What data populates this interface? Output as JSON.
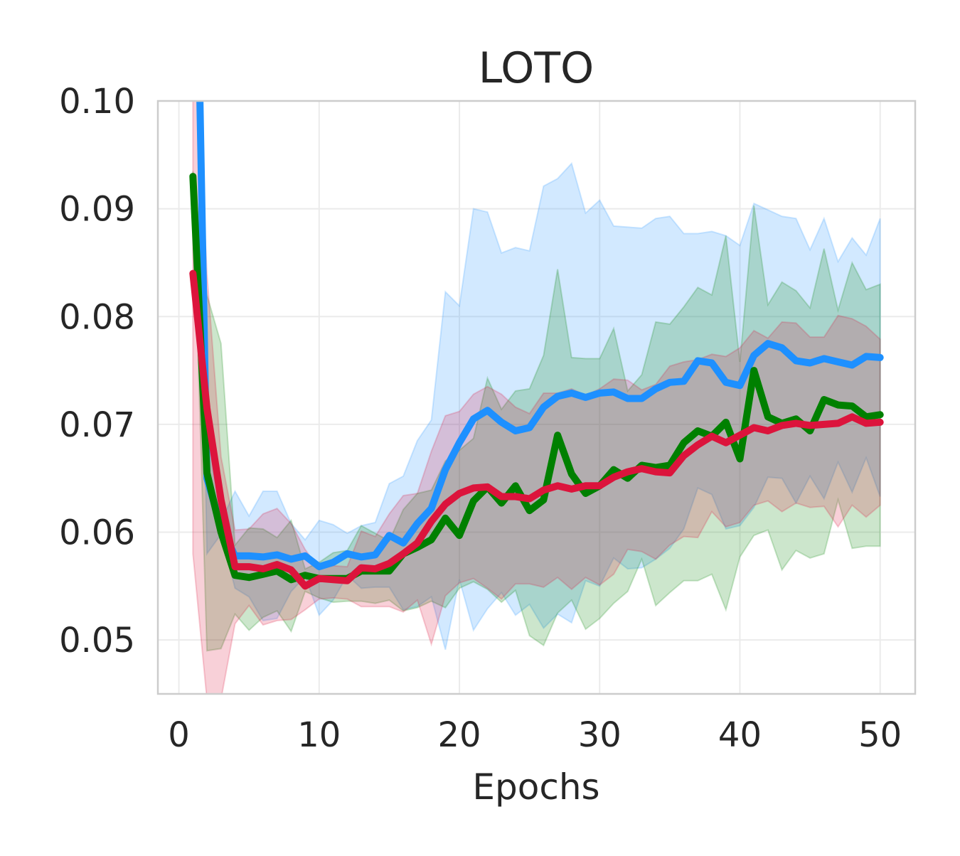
{
  "chart_data": {
    "type": "line",
    "title": "LOTO",
    "xlabel": "Epochs",
    "ylabel": "",
    "xlim": [
      -1.5,
      52.5
    ],
    "ylim": [
      0.045,
      0.1
    ],
    "xticks": [
      0,
      10,
      20,
      30,
      40,
      50
    ],
    "xtick_labels": [
      "0",
      "10",
      "20",
      "30",
      "40",
      "50"
    ],
    "yticks": [
      0.05,
      0.06,
      0.07,
      0.08,
      0.09,
      0.1
    ],
    "ytick_labels": [
      "0.05",
      "0.06",
      "0.07",
      "0.08",
      "0.09",
      "0.10"
    ],
    "grid": true,
    "x": [
      1,
      2,
      3,
      4,
      5,
      6,
      7,
      8,
      9,
      10,
      11,
      12,
      13,
      14,
      15,
      16,
      17,
      18,
      19,
      20,
      21,
      22,
      23,
      24,
      25,
      26,
      27,
      28,
      29,
      30,
      31,
      32,
      33,
      34,
      35,
      36,
      37,
      38,
      39,
      40,
      41,
      42,
      43,
      44,
      45,
      46,
      47,
      48,
      49,
      50
    ],
    "series": [
      {
        "color": "#1e90ff",
        "values": [
          0.135,
          0.065,
          0.0605,
          0.0578,
          0.0578,
          0.0577,
          0.0579,
          0.0575,
          0.0578,
          0.0568,
          0.0572,
          0.058,
          0.0577,
          0.0579,
          0.0597,
          0.059,
          0.0608,
          0.0622,
          0.0658,
          0.0683,
          0.0705,
          0.0713,
          0.0702,
          0.0694,
          0.0697,
          0.0716,
          0.0726,
          0.0729,
          0.0725,
          0.0729,
          0.073,
          0.0724,
          0.0724,
          0.0733,
          0.0739,
          0.074,
          0.0759,
          0.0757,
          0.0739,
          0.0736,
          0.0764,
          0.0775,
          0.0771,
          0.0759,
          0.0757,
          0.0761,
          0.0758,
          0.0755,
          0.0763,
          0.0762
        ],
        "upper": [
          0.14,
          0.072,
          0.061,
          0.0638,
          0.0615,
          0.0638,
          0.0638,
          0.0608,
          0.0593,
          0.0611,
          0.0607,
          0.0599,
          0.0606,
          0.0609,
          0.0645,
          0.0652,
          0.0685,
          0.0704,
          0.0823,
          0.081,
          0.09,
          0.0897,
          0.0859,
          0.0864,
          0.0861,
          0.0921,
          0.0928,
          0.0942,
          0.0896,
          0.0908,
          0.0884,
          0.0883,
          0.0882,
          0.0891,
          0.0893,
          0.0877,
          0.0877,
          0.0879,
          0.0875,
          0.0866,
          0.0905,
          0.0899,
          0.0893,
          0.0891,
          0.0862,
          0.0891,
          0.0851,
          0.0873,
          0.0857,
          0.0891
        ],
        "lower": [
          0.13,
          0.058,
          0.0598,
          0.0548,
          0.054,
          0.0518,
          0.052,
          0.0545,
          0.0559,
          0.0523,
          0.0537,
          0.056,
          0.0548,
          0.0549,
          0.0549,
          0.0528,
          0.0531,
          0.054,
          0.0491,
          0.0556,
          0.0509,
          0.0529,
          0.0544,
          0.0523,
          0.0533,
          0.0511,
          0.0524,
          0.0516,
          0.0555,
          0.055,
          0.0576,
          0.0566,
          0.0567,
          0.0575,
          0.0585,
          0.0603,
          0.0641,
          0.0635,
          0.0603,
          0.0606,
          0.0623,
          0.0651,
          0.065,
          0.0627,
          0.0652,
          0.0631,
          0.0665,
          0.0637,
          0.0669,
          0.0633
        ]
      },
      {
        "color": "#008000",
        "values": [
          0.093,
          0.0655,
          0.06,
          0.056,
          0.0558,
          0.0561,
          0.0564,
          0.0556,
          0.056,
          0.0557,
          0.0557,
          0.0557,
          0.0564,
          0.0564,
          0.0564,
          0.058,
          0.0586,
          0.0593,
          0.0613,
          0.0597,
          0.0629,
          0.0642,
          0.0627,
          0.0643,
          0.062,
          0.063,
          0.069,
          0.0654,
          0.0636,
          0.0643,
          0.0658,
          0.065,
          0.0662,
          0.066,
          0.0662,
          0.0683,
          0.0694,
          0.0689,
          0.0702,
          0.0668,
          0.075,
          0.0707,
          0.0701,
          0.0705,
          0.0694,
          0.0723,
          0.0718,
          0.0717,
          0.0707,
          0.0709
        ],
        "upper": [
          0.0935,
          0.082,
          0.0775,
          0.0588,
          0.0604,
          0.0603,
          0.0595,
          0.0611,
          0.0566,
          0.0572,
          0.0581,
          0.0583,
          0.0606,
          0.0599,
          0.0592,
          0.0621,
          0.0636,
          0.0639,
          0.0666,
          0.0676,
          0.0687,
          0.0743,
          0.0714,
          0.0731,
          0.0733,
          0.0764,
          0.0844,
          0.0762,
          0.0761,
          0.0761,
          0.0789,
          0.0731,
          0.0746,
          0.0795,
          0.0793,
          0.0809,
          0.0827,
          0.082,
          0.0875,
          0.0758,
          0.0903,
          0.0811,
          0.0832,
          0.0824,
          0.0808,
          0.0863,
          0.0806,
          0.085,
          0.0825,
          0.083
        ],
        "lower": [
          0.0925,
          0.049,
          0.0492,
          0.0524,
          0.0509,
          0.0521,
          0.0527,
          0.0508,
          0.0545,
          0.0539,
          0.0535,
          0.0536,
          0.0536,
          0.0534,
          0.0537,
          0.0527,
          0.053,
          0.0536,
          0.053,
          0.0548,
          0.0554,
          0.0547,
          0.0535,
          0.0546,
          0.0504,
          0.0495,
          0.0525,
          0.0537,
          0.051,
          0.052,
          0.0534,
          0.0545,
          0.0575,
          0.0532,
          0.0544,
          0.0555,
          0.0555,
          0.0561,
          0.0528,
          0.0577,
          0.0597,
          0.0602,
          0.0565,
          0.0583,
          0.0576,
          0.058,
          0.063,
          0.0585,
          0.0587,
          0.0587
        ]
      },
      {
        "color": "#dc143c",
        "values": [
          0.084,
          0.0715,
          0.063,
          0.0568,
          0.0568,
          0.0566,
          0.057,
          0.0565,
          0.055,
          0.0557,
          0.0556,
          0.0555,
          0.0567,
          0.0566,
          0.0571,
          0.058,
          0.059,
          0.061,
          0.0626,
          0.0636,
          0.0641,
          0.0642,
          0.0633,
          0.0633,
          0.0631,
          0.0639,
          0.0643,
          0.064,
          0.0643,
          0.0643,
          0.0651,
          0.0656,
          0.0659,
          0.0656,
          0.0655,
          0.0671,
          0.0681,
          0.0689,
          0.0683,
          0.069,
          0.0697,
          0.0694,
          0.0699,
          0.0701,
          0.0699,
          0.07,
          0.0701,
          0.0707,
          0.0701,
          0.0702
        ],
        "upper": [
          0.11,
          0.084,
          0.067,
          0.0602,
          0.0603,
          0.0617,
          0.0622,
          0.0608,
          0.0584,
          0.0566,
          0.0569,
          0.0568,
          0.0601,
          0.0596,
          0.0617,
          0.0634,
          0.0636,
          0.0675,
          0.0708,
          0.0712,
          0.0728,
          0.0735,
          0.0728,
          0.0716,
          0.071,
          0.0729,
          0.0729,
          0.0733,
          0.0727,
          0.0733,
          0.0742,
          0.0741,
          0.0732,
          0.0737,
          0.0754,
          0.0758,
          0.076,
          0.0765,
          0.0763,
          0.0771,
          0.0787,
          0.078,
          0.0795,
          0.0794,
          0.0781,
          0.0781,
          0.0801,
          0.0798,
          0.0791,
          0.0779
        ],
        "lower": [
          0.058,
          0.0445,
          0.0445,
          0.0515,
          0.0532,
          0.0514,
          0.0518,
          0.0519,
          0.0528,
          0.0538,
          0.0539,
          0.0538,
          0.0531,
          0.0531,
          0.0531,
          0.0526,
          0.0537,
          0.0496,
          0.0541,
          0.0553,
          0.0557,
          0.0548,
          0.0538,
          0.0552,
          0.0552,
          0.0549,
          0.0558,
          0.0547,
          0.0558,
          0.0551,
          0.0561,
          0.0584,
          0.0582,
          0.0575,
          0.0588,
          0.0596,
          0.0595,
          0.0619,
          0.0605,
          0.0609,
          0.0625,
          0.0629,
          0.0619,
          0.0627,
          0.0623,
          0.0624,
          0.0605,
          0.0625,
          0.0614,
          0.0625
        ]
      }
    ]
  }
}
